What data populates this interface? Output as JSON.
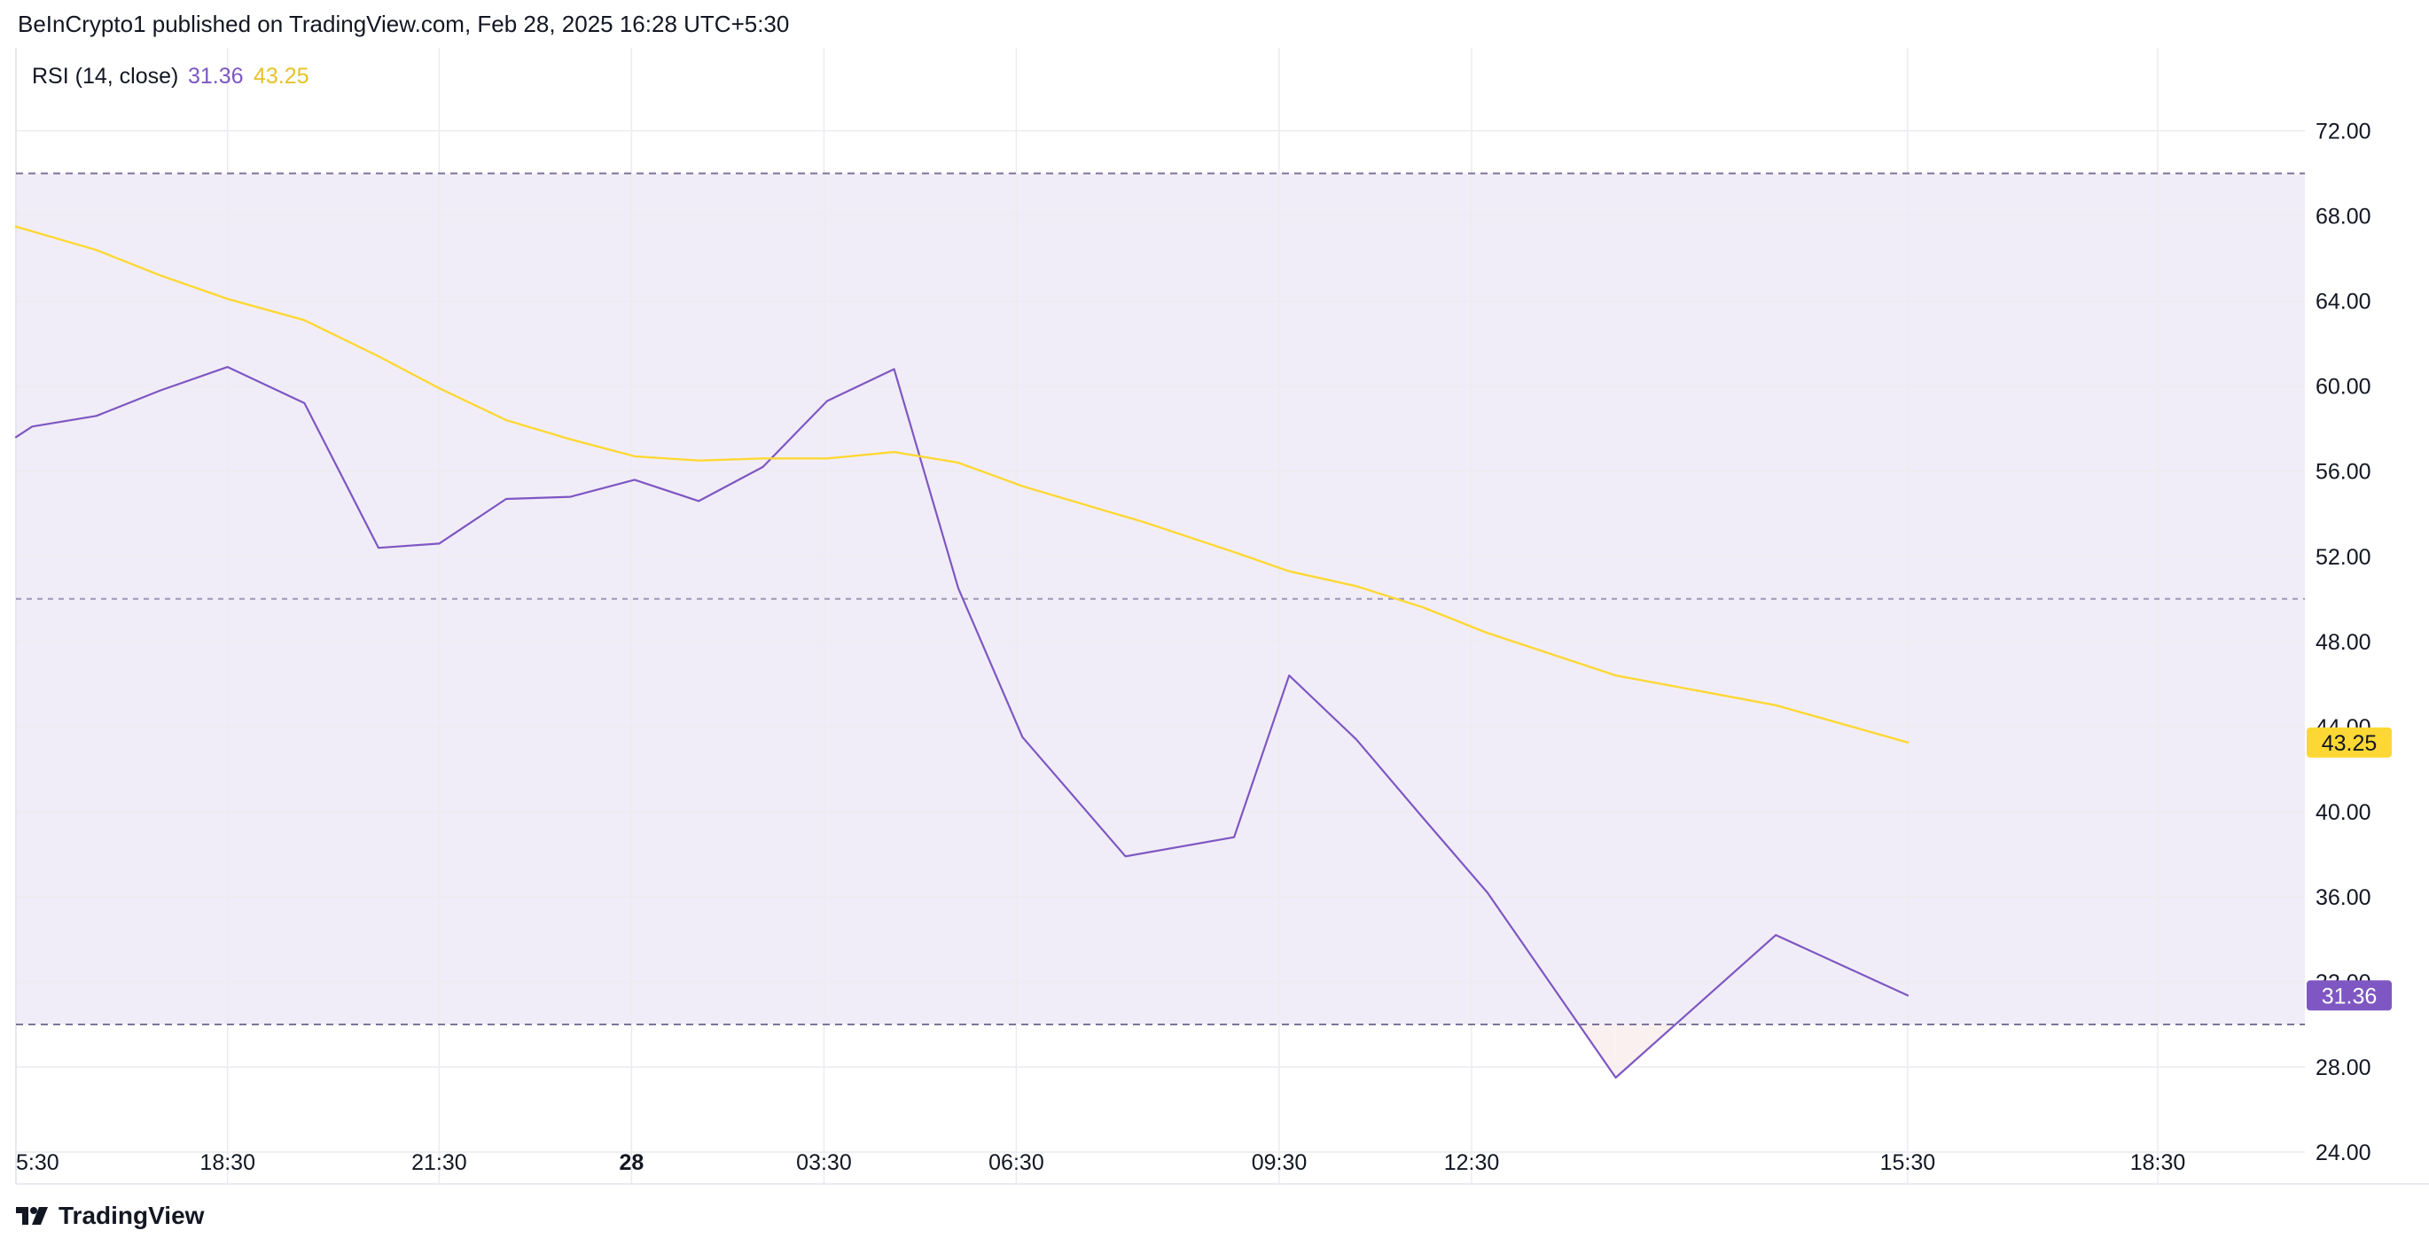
{
  "header": {
    "publish_line": "BeInCrypto1 published on TradingView.com, Feb 28, 2025 16:28 UTC+5:30"
  },
  "footer": {
    "logo_text": "TradingView"
  },
  "chart_data": {
    "type": "line",
    "title": "RSI (14, close)",
    "legend": {
      "label": "RSI (14, close)",
      "rsi_value": "31.36",
      "ma_value": "43.25"
    },
    "colors": {
      "rsi": "#7e57c2",
      "ma": "#fdd835",
      "band_fill": "#f1edf8",
      "band_line": "#7e7499",
      "grid": "#ececf0",
      "badge_rsi_bg": "#7e57c2",
      "badge_rsi_text": "#ffffff",
      "badge_ma_bg": "#fdd835",
      "badge_ma_text": "#131722"
    },
    "ylim": [
      22.5,
      75.9
    ],
    "y_ticks": [
      {
        "value": 72,
        "label": "72.00"
      },
      {
        "value": 68,
        "label": "68.00"
      },
      {
        "value": 64,
        "label": "64.00"
      },
      {
        "value": 60,
        "label": "60.00"
      },
      {
        "value": 56,
        "label": "56.00"
      },
      {
        "value": 52,
        "label": "52.00"
      },
      {
        "value": 48,
        "label": "48.00"
      },
      {
        "value": 44,
        "label": "44.00"
      },
      {
        "value": 40,
        "label": "40.00"
      },
      {
        "value": 36,
        "label": "36.00"
      },
      {
        "value": 32,
        "label": "32.00"
      },
      {
        "value": 28,
        "label": "28.00"
      },
      {
        "value": 24,
        "label": "24.00"
      }
    ],
    "x_ticks": [
      {
        "t": 0.0,
        "label": "5:30",
        "bold": false
      },
      {
        "t": 3.0,
        "label": "18:30",
        "bold": false
      },
      {
        "t": 6.0,
        "label": "21:30",
        "bold": false
      },
      {
        "t": 8.727,
        "label": "28",
        "bold": true
      },
      {
        "t": 11.455,
        "label": "03:30",
        "bold": false
      },
      {
        "t": 14.182,
        "label": "06:30",
        "bold": false
      },
      {
        "t": 17.909,
        "label": "09:30",
        "bold": false
      },
      {
        "t": 20.636,
        "label": "12:30",
        "bold": false
      },
      {
        "t": 26.818,
        "label": "15:30",
        "bold": false
      },
      {
        "t": 30.364,
        "label": "18:30",
        "bold": false
      }
    ],
    "xlim": [
      0.0,
      32.45
    ],
    "bands": {
      "upper": 70,
      "middle": 50,
      "lower": 30
    },
    "series": [
      {
        "key": "rsi",
        "values": [
          [
            0.0,
            57.6
          ],
          [
            0.23,
            58.1
          ],
          [
            1.14,
            58.6
          ],
          [
            2.05,
            59.8
          ],
          [
            3.0,
            60.9
          ],
          [
            4.09,
            59.2
          ],
          [
            5.14,
            52.4
          ],
          [
            6.0,
            52.6
          ],
          [
            6.95,
            54.7
          ],
          [
            7.86,
            54.8
          ],
          [
            8.77,
            55.6
          ],
          [
            9.68,
            54.6
          ],
          [
            10.59,
            56.2
          ],
          [
            11.5,
            59.3
          ],
          [
            12.45,
            60.8
          ],
          [
            13.36,
            50.5
          ],
          [
            14.27,
            43.5
          ],
          [
            15.73,
            37.9
          ],
          [
            17.27,
            38.8
          ],
          [
            18.05,
            46.4
          ],
          [
            19.0,
            43.4
          ],
          [
            19.95,
            39.7
          ],
          [
            20.86,
            36.2
          ],
          [
            22.68,
            27.5
          ],
          [
            24.95,
            34.2
          ],
          [
            26.82,
            31.36
          ]
        ]
      },
      {
        "key": "ma",
        "values": [
          [
            0.0,
            67.5
          ],
          [
            1.14,
            66.4
          ],
          [
            2.05,
            65.2
          ],
          [
            3.0,
            64.1
          ],
          [
            4.09,
            63.1
          ],
          [
            5.14,
            61.4
          ],
          [
            6.0,
            59.9
          ],
          [
            6.95,
            58.4
          ],
          [
            7.86,
            57.5
          ],
          [
            8.77,
            56.7
          ],
          [
            9.68,
            56.5
          ],
          [
            10.59,
            56.6
          ],
          [
            11.5,
            56.6
          ],
          [
            12.45,
            56.9
          ],
          [
            13.36,
            56.4
          ],
          [
            14.27,
            55.3
          ],
          [
            16.0,
            53.6
          ],
          [
            17.27,
            52.2
          ],
          [
            18.05,
            51.3
          ],
          [
            19.0,
            50.6
          ],
          [
            19.95,
            49.6
          ],
          [
            20.86,
            48.4
          ],
          [
            22.68,
            46.4
          ],
          [
            24.95,
            45.0
          ],
          [
            26.82,
            43.25
          ]
        ]
      }
    ],
    "last_value_badges": [
      {
        "key": "ma",
        "label": "43.25",
        "value": 43.25
      },
      {
        "key": "rsi",
        "label": "31.36",
        "value": 31.36
      }
    ]
  }
}
